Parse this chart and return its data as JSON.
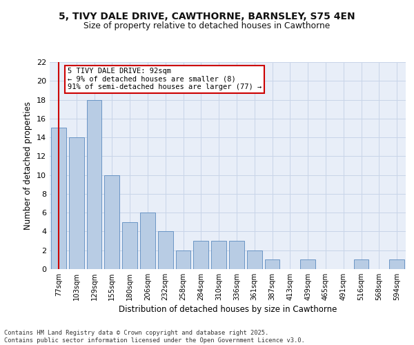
{
  "title1": "5, TIVY DALE DRIVE, CAWTHORNE, BARNSLEY, S75 4EN",
  "title2": "Size of property relative to detached houses in Cawthorne",
  "xlabel": "Distribution of detached houses by size in Cawthorne",
  "ylabel": "Number of detached properties",
  "categories": [
    "77sqm",
    "103sqm",
    "129sqm",
    "155sqm",
    "180sqm",
    "206sqm",
    "232sqm",
    "258sqm",
    "284sqm",
    "310sqm",
    "336sqm",
    "361sqm",
    "387sqm",
    "413sqm",
    "439sqm",
    "465sqm",
    "491sqm",
    "516sqm",
    "568sqm",
    "594sqm"
  ],
  "values": [
    15,
    14,
    18,
    10,
    5,
    6,
    4,
    2,
    3,
    3,
    3,
    2,
    1,
    0,
    1,
    0,
    0,
    1,
    0,
    1
  ],
  "bar_color": "#b8cce4",
  "bar_edgecolor": "#5a8abf",
  "grid_color": "#c8d4e8",
  "bg_color": "#e8eef8",
  "annotation_text": "5 TIVY DALE DRIVE: 92sqm\n← 9% of detached houses are smaller (8)\n91% of semi-detached houses are larger (77) →",
  "annotation_box_color": "#ffffff",
  "annotation_box_edgecolor": "#cc0000",
  "vline_color": "#cc0000",
  "ylim": [
    0,
    22
  ],
  "yticks": [
    0,
    2,
    4,
    6,
    8,
    10,
    12,
    14,
    16,
    18,
    20,
    22
  ],
  "footer": "Contains HM Land Registry data © Crown copyright and database right 2025.\nContains public sector information licensed under the Open Government Licence v3.0."
}
